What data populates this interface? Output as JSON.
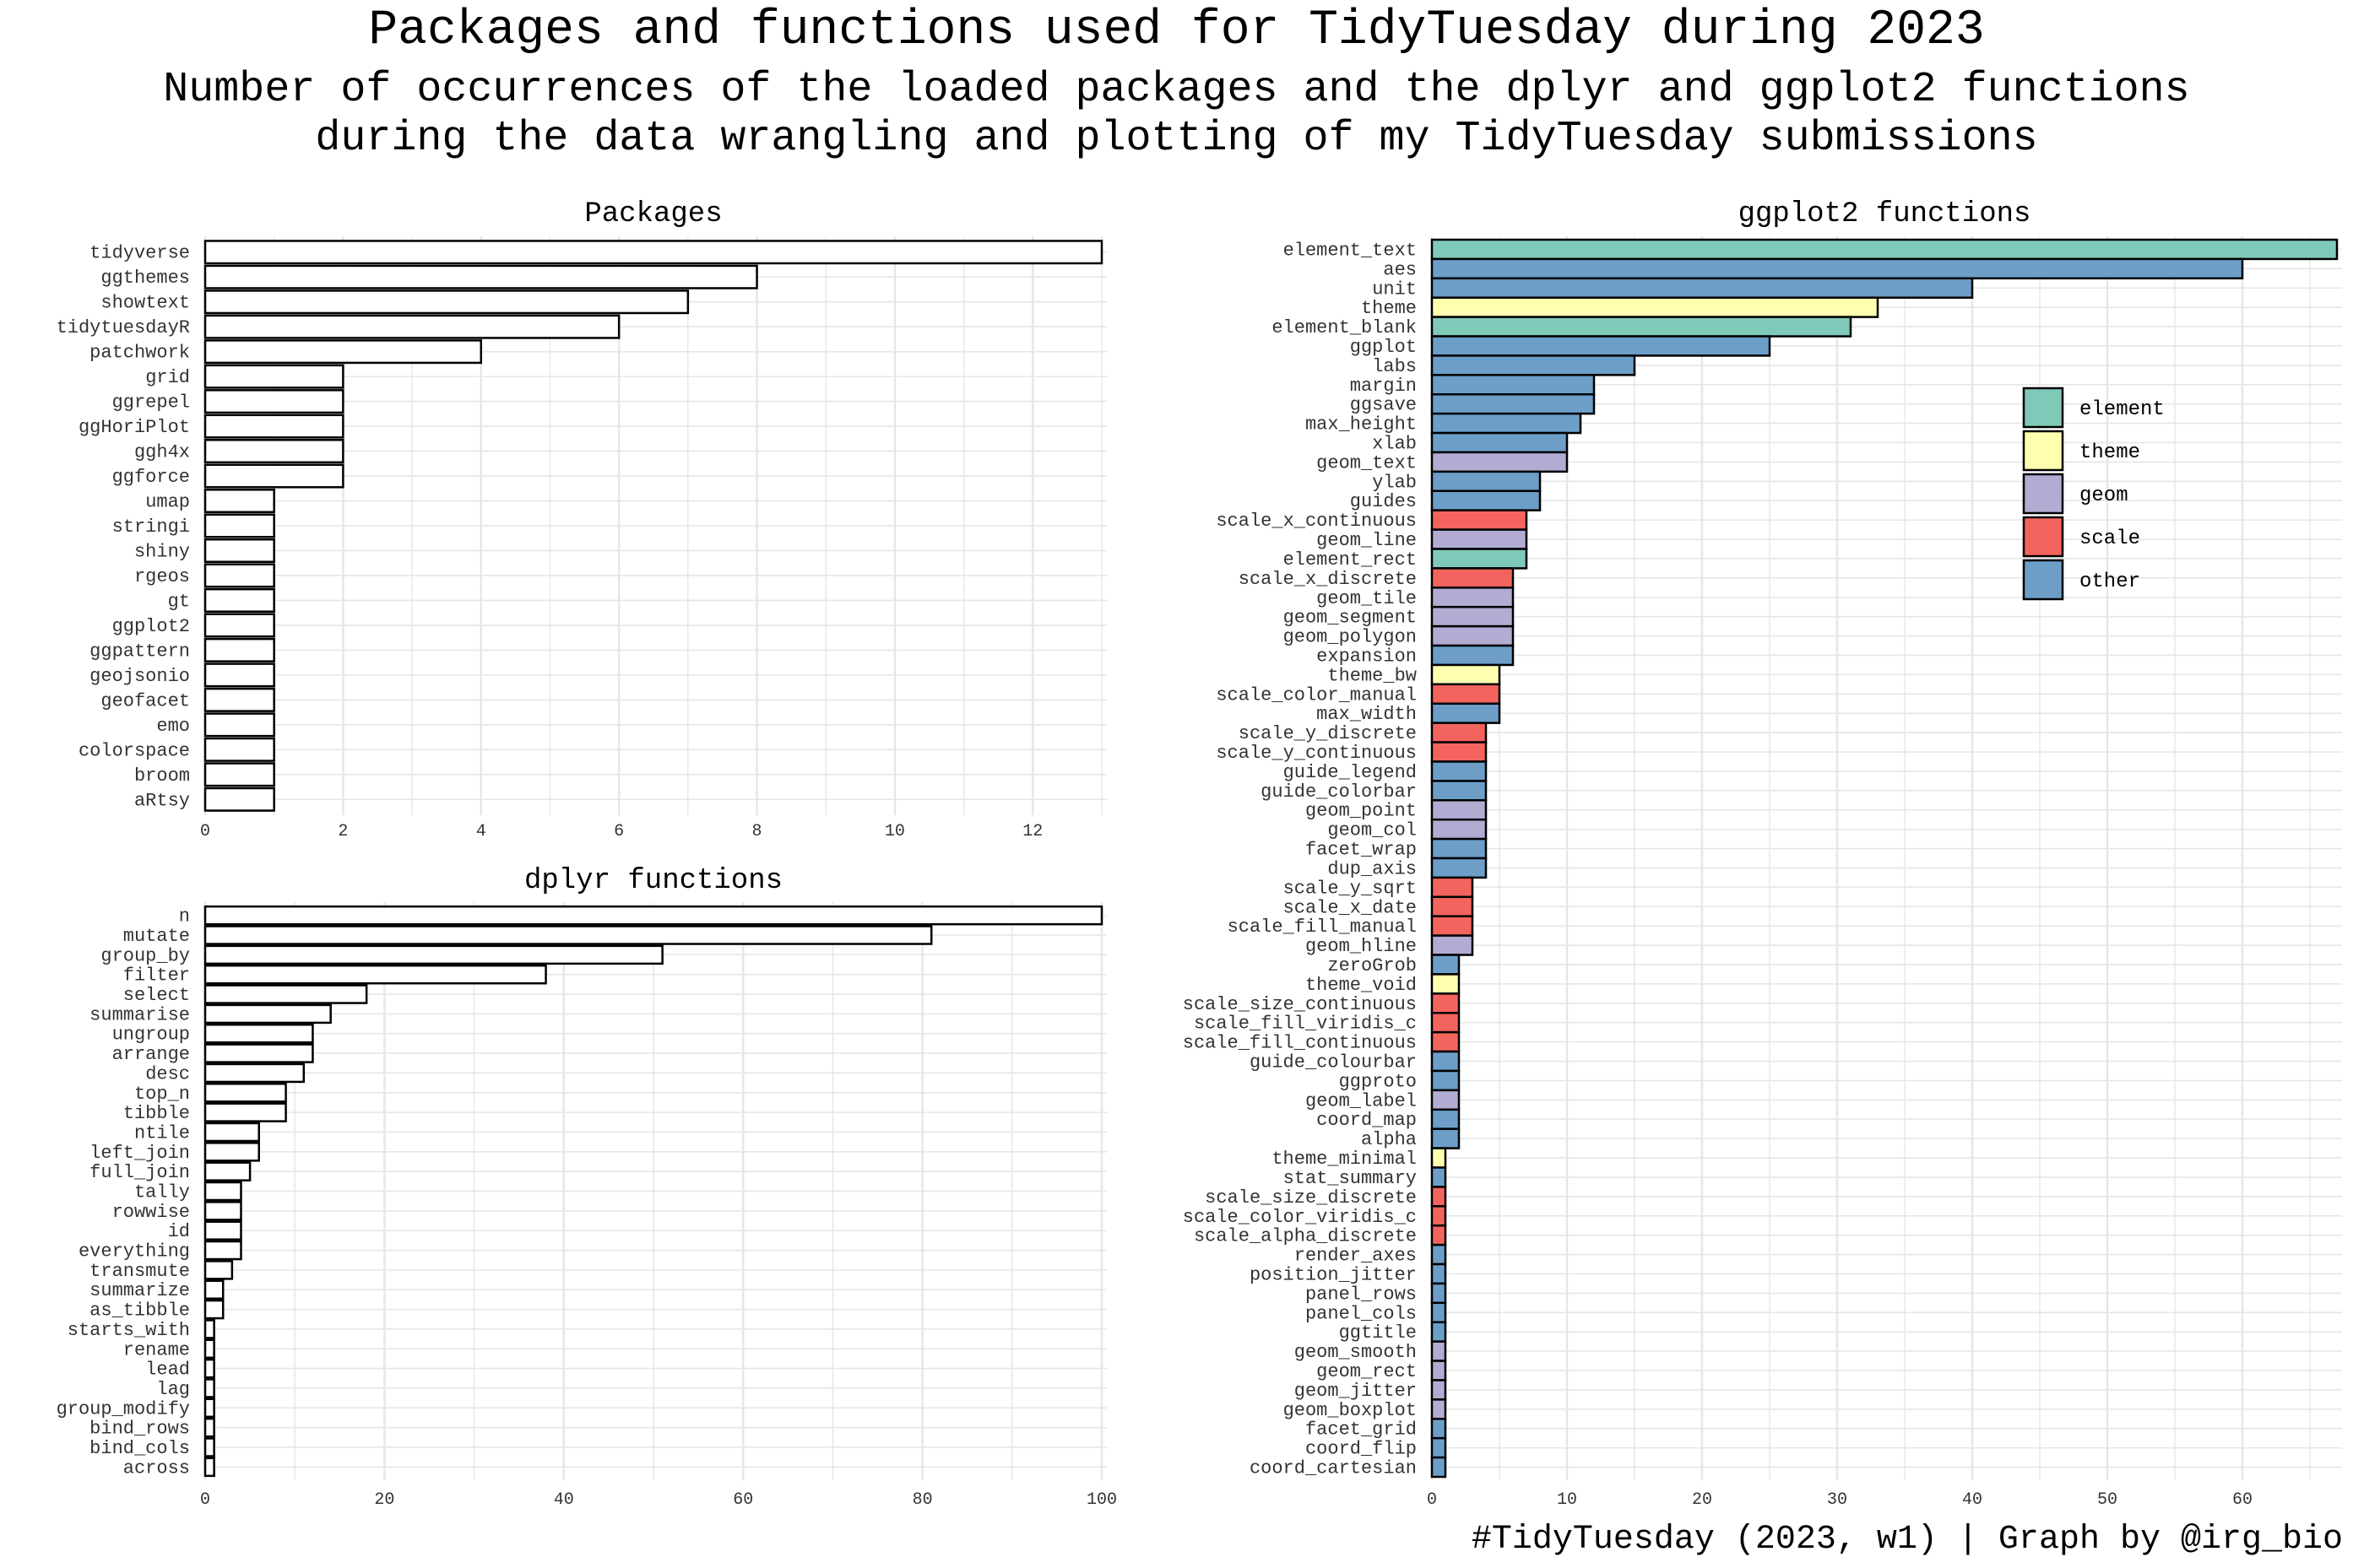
{
  "header": {
    "title": "Packages and functions used for TidyTuesday during 2023",
    "subtitle_line1": "Number of occurrences of the loaded packages and the dplyr and ggplot2 functions",
    "subtitle_line2": "during the data wrangling and plotting of my TidyTuesday submissions"
  },
  "caption": "#TidyTuesday (2023, w1) | Graph by @irg_bio",
  "colors": {
    "element": "#7fc9b8",
    "theme": "#ffffb0",
    "geom": "#b2abd2",
    "scale": "#f4645e",
    "other": "#6c9ec8",
    "plain_bar": "#ffffff",
    "grid": "#e6e6e6"
  },
  "chart_data": [
    {
      "type": "bar",
      "orientation": "horizontal",
      "title": "Packages",
      "xlim": [
        0,
        13
      ],
      "xticks": [
        0,
        2,
        4,
        6,
        8,
        10,
        12
      ],
      "grid": true,
      "categories": [
        "tidyverse",
        "ggthemes",
        "showtext",
        "tidytuesdayR",
        "patchwork",
        "grid",
        "ggrepel",
        "ggHoriPlot",
        "ggh4x",
        "ggforce",
        "umap",
        "stringi",
        "shiny",
        "rgeos",
        "gt",
        "ggplot2",
        "ggpattern",
        "geojsonio",
        "geofacet",
        "emo",
        "colorspace",
        "broom",
        "aRtsy"
      ],
      "values": [
        13,
        8,
        7,
        6,
        4,
        2,
        2,
        2,
        2,
        2,
        1,
        1,
        1,
        1,
        1,
        1,
        1,
        1,
        1,
        1,
        1,
        1,
        1
      ]
    },
    {
      "type": "bar",
      "orientation": "horizontal",
      "title": "dplyr functions",
      "xlim": [
        0,
        100
      ],
      "xticks": [
        0,
        20,
        40,
        60,
        80,
        100
      ],
      "grid": true,
      "categories": [
        "n",
        "mutate",
        "group_by",
        "filter",
        "select",
        "summarise",
        "ungroup",
        "arrange",
        "desc",
        "top_n",
        "tibble",
        "ntile",
        "left_join",
        "full_join",
        "tally",
        "rowwise",
        "id",
        "everything",
        "transmute",
        "summarize",
        "as_tibble",
        "starts_with",
        "rename",
        "lead",
        "lag",
        "group_modify",
        "bind_rows",
        "bind_cols",
        "across"
      ],
      "values": [
        100,
        81,
        51,
        38,
        18,
        14,
        12,
        12,
        11,
        9,
        9,
        6,
        6,
        5,
        4,
        4,
        4,
        4,
        3,
        2,
        2,
        1,
        1,
        1,
        1,
        1,
        1,
        1,
        1
      ]
    },
    {
      "type": "bar",
      "orientation": "horizontal",
      "title": "ggplot2 functions",
      "xlim": [
        0,
        67
      ],
      "xticks": [
        0,
        10,
        20,
        30,
        40,
        50,
        60
      ],
      "grid": true,
      "legend_position": "top-right",
      "legend": [
        "element",
        "theme",
        "geom",
        "scale",
        "other"
      ],
      "categories": [
        "element_text",
        "aes",
        "unit",
        "theme",
        "element_blank",
        "ggplot",
        "labs",
        "margin",
        "ggsave",
        "max_height",
        "xlab",
        "geom_text",
        "ylab",
        "guides",
        "scale_x_continuous",
        "geom_line",
        "element_rect",
        "scale_x_discrete",
        "geom_tile",
        "geom_segment",
        "geom_polygon",
        "expansion",
        "theme_bw",
        "scale_color_manual",
        "max_width",
        "scale_y_discrete",
        "scale_y_continuous",
        "guide_legend",
        "guide_colorbar",
        "geom_point",
        "geom_col",
        "facet_wrap",
        "dup_axis",
        "scale_y_sqrt",
        "scale_x_date",
        "scale_fill_manual",
        "geom_hline",
        "zeroGrob",
        "theme_void",
        "scale_size_continuous",
        "scale_fill_viridis_c",
        "scale_fill_continuous",
        "guide_colourbar",
        "ggproto",
        "geom_label",
        "coord_map",
        "alpha",
        "theme_minimal",
        "stat_summary",
        "scale_size_discrete",
        "scale_color_viridis_c",
        "scale_alpha_discrete",
        "render_axes",
        "position_jitter",
        "panel_rows",
        "panel_cols",
        "ggtitle",
        "geom_smooth",
        "geom_rect",
        "geom_jitter",
        "geom_boxplot",
        "facet_grid",
        "coord_flip",
        "coord_cartesian"
      ],
      "values": [
        67,
        60,
        40,
        33,
        31,
        25,
        15,
        12,
        12,
        11,
        10,
        10,
        8,
        8,
        7,
        7,
        7,
        6,
        6,
        6,
        6,
        6,
        5,
        5,
        5,
        4,
        4,
        4,
        4,
        4,
        4,
        4,
        4,
        3,
        3,
        3,
        3,
        2,
        2,
        2,
        2,
        2,
        2,
        2,
        2,
        2,
        2,
        1,
        1,
        1,
        1,
        1,
        1,
        1,
        1,
        1,
        1,
        1,
        1,
        1,
        1,
        1,
        1,
        1
      ],
      "groups": [
        "element",
        "other",
        "other",
        "theme",
        "element",
        "other",
        "other",
        "other",
        "other",
        "other",
        "other",
        "geom",
        "other",
        "other",
        "scale",
        "geom",
        "element",
        "scale",
        "geom",
        "geom",
        "geom",
        "other",
        "theme",
        "scale",
        "other",
        "scale",
        "scale",
        "other",
        "other",
        "geom",
        "geom",
        "other",
        "other",
        "scale",
        "scale",
        "scale",
        "geom",
        "other",
        "theme",
        "scale",
        "scale",
        "scale",
        "other",
        "other",
        "geom",
        "other",
        "other",
        "theme",
        "other",
        "scale",
        "scale",
        "scale",
        "other",
        "other",
        "other",
        "other",
        "other",
        "geom",
        "geom",
        "geom",
        "geom",
        "other",
        "other",
        "other"
      ]
    }
  ]
}
